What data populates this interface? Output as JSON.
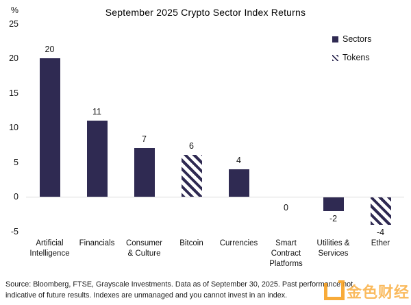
{
  "header": {
    "title": "September 2025 Crypto Sector Index Returns",
    "unit_label": "%"
  },
  "legend": {
    "items": [
      {
        "label": "Sectors",
        "style": "solid"
      },
      {
        "label": "Tokens",
        "style": "hatched"
      }
    ]
  },
  "chart_data": {
    "type": "bar",
    "title": "September 2025 Crypto Sector Index Returns",
    "ylabel": "%",
    "xlabel": "",
    "ylim": [
      -5,
      25
    ],
    "y_ticks": [
      25,
      20,
      15,
      10,
      5,
      0,
      -5
    ],
    "grid": false,
    "legend_position": "top-right",
    "categories": [
      "Artificial Intelligence",
      "Financials",
      "Consumer & Culture",
      "Bitcoin",
      "Currencies",
      "Smart Contract Platforms",
      "Utilities & Services",
      "Ether"
    ],
    "category_label_lines": [
      [
        "Artificial",
        "Intelligence"
      ],
      [
        "Financials"
      ],
      [
        "Consumer",
        "& Culture"
      ],
      [
        "Bitcoin"
      ],
      [
        "Currencies"
      ],
      [
        "Smart",
        "Contract",
        "Platforms"
      ],
      [
        "Utilities &",
        "Services"
      ],
      [
        "Ether"
      ]
    ],
    "values": [
      20,
      11,
      7,
      6,
      4,
      0,
      -2,
      -4
    ],
    "bar_styles": [
      "solid",
      "solid",
      "solid",
      "hatched",
      "solid",
      "solid",
      "solid",
      "hatched"
    ],
    "series_note": "solid = Sectors, hatched = Tokens",
    "colors": {
      "bar": "#2f2a52",
      "axis_line": "#d9d9d9",
      "text": "#111111"
    }
  },
  "footer": {
    "source_line1": "Source: Bloomberg, FTSE, Grayscale Investments. Data as of September 30, 2025. Past performance not",
    "source_line2": "indicative of future results. Indexes are unmanaged and you cannot invest in an index."
  },
  "watermark": {
    "text": "金色财经",
    "color": "#f8a01e"
  }
}
